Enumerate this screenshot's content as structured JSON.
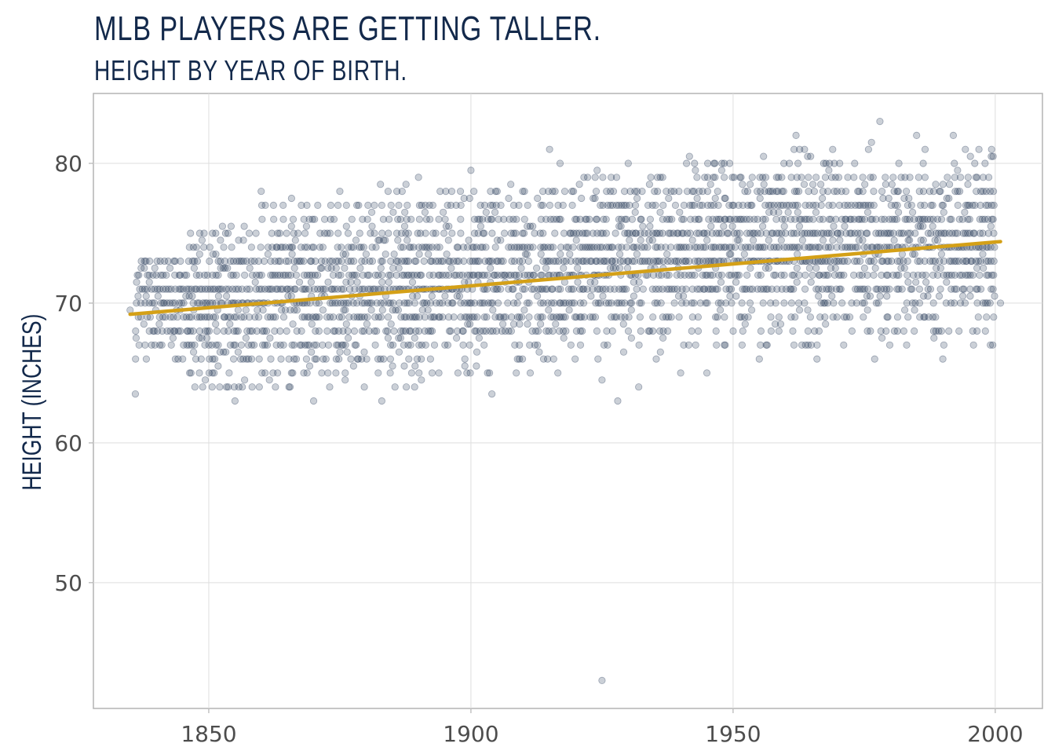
{
  "chart_data": {
    "type": "scatter",
    "title": "MLB PLAYERS ARE GETTING TALLER.",
    "subtitle": "HEIGHT BY YEAR OF BIRTH.",
    "xlabel": "",
    "ylabel": "HEIGHT (INCHES)",
    "xlim": [
      1828,
      2009
    ],
    "ylim": [
      41,
      85
    ],
    "x_ticks": [
      1850,
      1900,
      1950,
      2000
    ],
    "x_tick_labels": [
      "1850",
      "1900",
      "1950",
      "2000"
    ],
    "y_ticks": [
      50,
      60,
      70,
      80
    ],
    "y_tick_labels": [
      "50",
      "60",
      "70",
      "80"
    ],
    "grid": true,
    "point_color": "#13294b",
    "trend_color": "#d4a017",
    "trend": {
      "x": [
        1835,
        2001
      ],
      "y": [
        69.2,
        74.4
      ]
    },
    "points": {
      "bins": [
        {
          "start": 1836,
          "end": 1846,
          "heights": [
            66,
            67,
            68,
            69,
            70,
            71,
            72,
            73
          ]
        },
        {
          "start": 1846,
          "end": 1860,
          "heights": [
            64,
            65,
            66,
            67,
            68,
            69,
            70,
            71,
            72,
            73,
            74,
            75
          ]
        },
        {
          "start": 1860,
          "end": 1880,
          "heights": [
            64,
            65,
            66,
            67,
            68,
            69,
            70,
            71,
            72,
            73,
            74,
            75,
            76,
            77
          ]
        },
        {
          "start": 1880,
          "end": 1900,
          "heights": [
            64,
            65,
            66,
            67,
            68,
            69,
            70,
            71,
            72,
            73,
            74,
            75,
            76,
            77,
            78
          ]
        },
        {
          "start": 1900,
          "end": 1920,
          "heights": [
            65,
            66,
            67,
            68,
            69,
            70,
            71,
            72,
            73,
            74,
            75,
            76,
            77,
            78
          ]
        },
        {
          "start": 1920,
          "end": 1940,
          "heights": [
            66,
            67,
            68,
            69,
            70,
            71,
            72,
            73,
            74,
            75,
            76,
            77,
            78,
            79
          ]
        },
        {
          "start": 1940,
          "end": 1960,
          "heights": [
            67,
            68,
            69,
            70,
            71,
            72,
            73,
            74,
            75,
            76,
            77,
            78,
            79,
            80
          ]
        },
        {
          "start": 1960,
          "end": 1980,
          "heights": [
            67,
            68,
            69,
            70,
            71,
            72,
            73,
            74,
            75,
            76,
            77,
            78,
            79,
            80,
            81
          ]
        },
        {
          "start": 1980,
          "end": 2000,
          "heights": [
            67,
            68,
            69,
            70,
            71,
            72,
            73,
            74,
            75,
            76,
            77,
            78,
            79,
            80,
            81
          ]
        }
      ],
      "outliers": [
        {
          "x": 1835,
          "y": 69.5
        },
        {
          "x": 1836,
          "y": 63.5
        },
        {
          "x": 1925,
          "y": 43
        },
        {
          "x": 1978,
          "y": 83
        },
        {
          "x": 1915,
          "y": 81
        },
        {
          "x": 1900,
          "y": 79.5
        },
        {
          "x": 1928,
          "y": 63
        },
        {
          "x": 1925,
          "y": 64.5
        },
        {
          "x": 1932,
          "y": 64
        },
        {
          "x": 1904,
          "y": 63.5
        },
        {
          "x": 1883,
          "y": 63
        },
        {
          "x": 1870,
          "y": 63
        },
        {
          "x": 1855,
          "y": 63
        },
        {
          "x": 2001,
          "y": 70
        },
        {
          "x": 1962,
          "y": 82
        },
        {
          "x": 1985,
          "y": 82
        },
        {
          "x": 1992,
          "y": 82
        },
        {
          "x": 1860,
          "y": 78
        },
        {
          "x": 1875,
          "y": 78
        },
        {
          "x": 1890,
          "y": 79
        },
        {
          "x": 1917,
          "y": 80
        },
        {
          "x": 1930,
          "y": 80
        },
        {
          "x": 1898,
          "y": 78
        },
        {
          "x": 1905,
          "y": 78
        },
        {
          "x": 1940,
          "y": 65
        },
        {
          "x": 1945,
          "y": 65
        },
        {
          "x": 1977,
          "y": 66
        },
        {
          "x": 1966,
          "y": 66
        },
        {
          "x": 1955,
          "y": 66
        },
        {
          "x": 1990,
          "y": 66
        }
      ]
    }
  }
}
